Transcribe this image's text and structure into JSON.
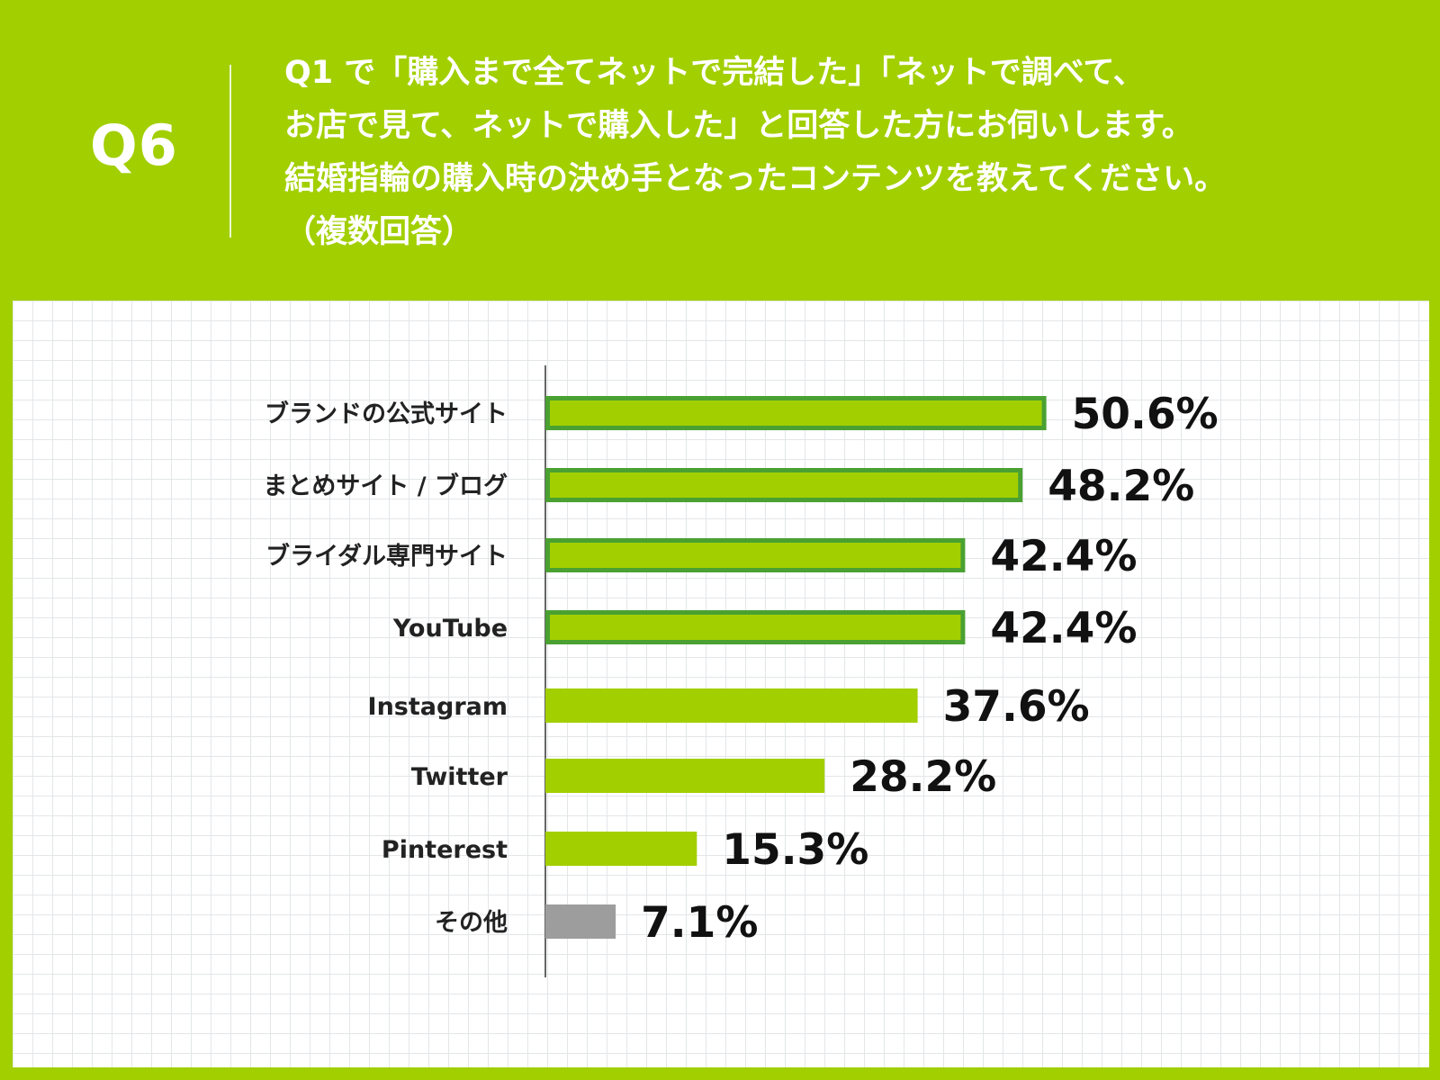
{
  "header": {
    "question_label": "Q6",
    "question_lines": [
      " Q1 で「購入まで全てネットで完結した」「ネットで調べて、",
      "お店で見て、ネットで購入した」と回答した方にお伺いします。",
      "結婚指輪の購入時の決め手となったコンテンツを教えてください。",
      "（複数回答）"
    ]
  },
  "colors": {
    "background": "#a2cf00",
    "bar_fill": "#a2cf00",
    "highlight_border": "#4aa132",
    "other_bar": "#9d9d9d",
    "other_text": "#9d9d9d"
  },
  "chart_data": {
    "type": "bar",
    "orientation": "horizontal",
    "unit": "%",
    "xlim": [
      0,
      100
    ],
    "grid": true,
    "categories": [
      "ブランドの公式サイト",
      "まとめサイト / ブログ",
      "ブライダル専門サイト",
      "YouTube",
      "Instagram",
      "Twitter",
      "Pinterest",
      "その他"
    ],
    "values": [
      50.6,
      48.2,
      42.4,
      42.4,
      37.6,
      28.2,
      15.3,
      7.1
    ],
    "value_labels": [
      "50.6%",
      "48.2%",
      "42.4%",
      "42.4%",
      "37.6%",
      "28.2%",
      "15.3%",
      "7.1%"
    ],
    "highlighted": [
      true,
      true,
      true,
      true,
      false,
      false,
      false,
      false
    ],
    "muted": [
      false,
      false,
      false,
      false,
      false,
      false,
      false,
      true
    ]
  }
}
